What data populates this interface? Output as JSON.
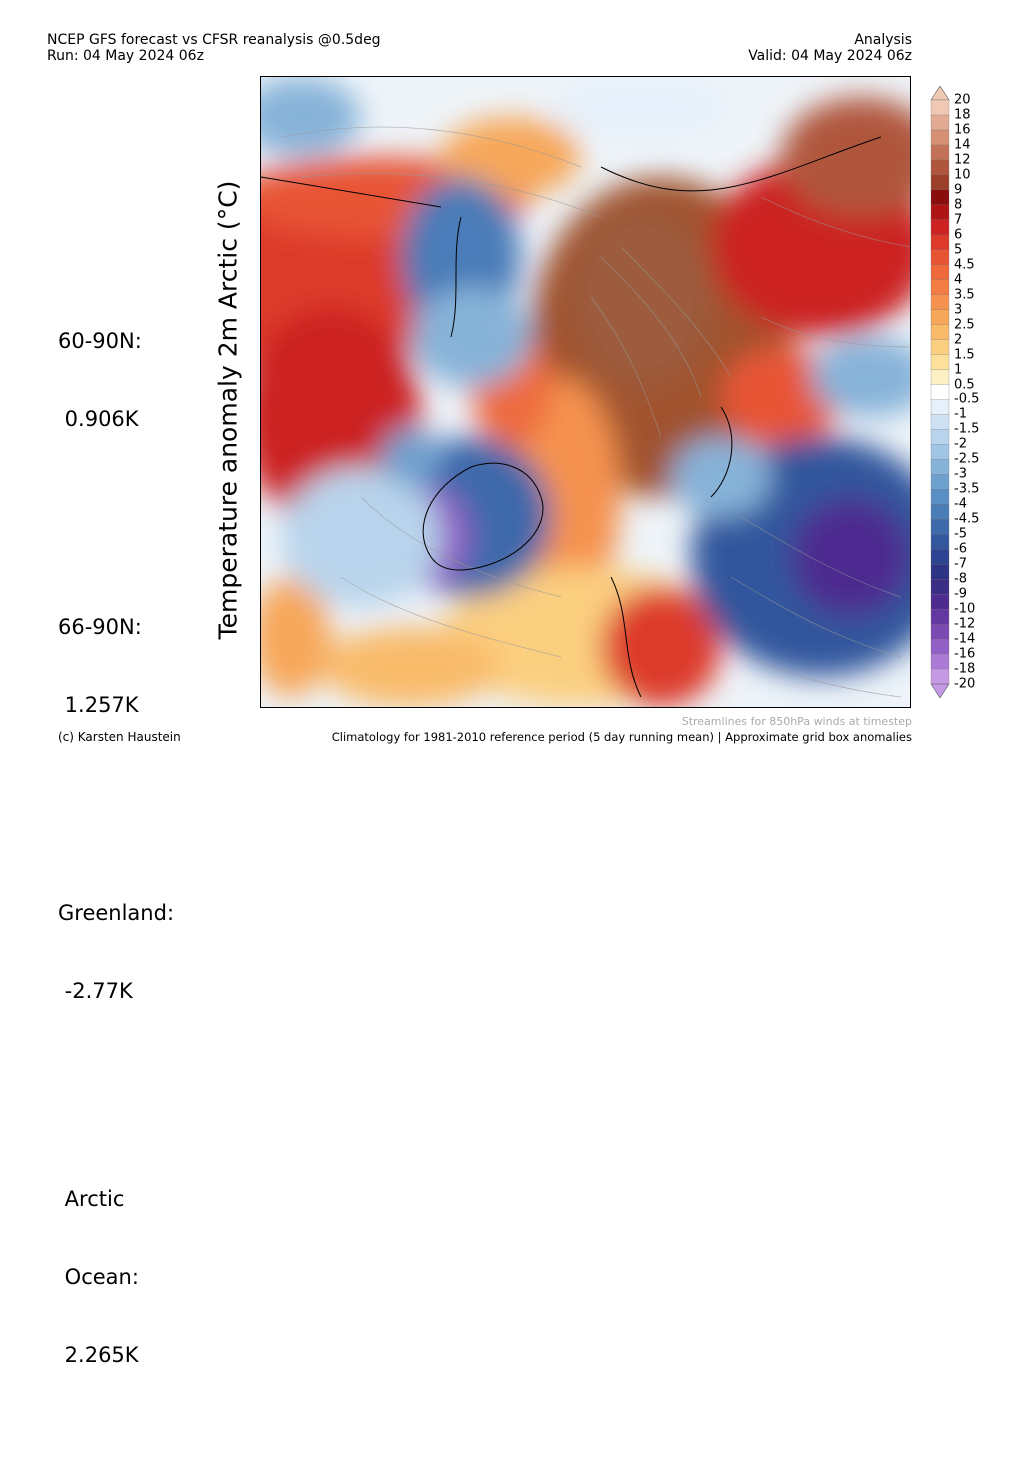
{
  "header": {
    "title_line1": "NCEP GFS forecast vs CFSR reanalysis @0.5deg",
    "title_line2": "Run: 04 May 2024 06z",
    "right_line1": "Analysis",
    "right_line2": "Valid: 04 May 2024 06z"
  },
  "stats": [
    {
      "label": "60-90N:",
      "value": " 0.906K"
    },
    {
      "label": "66-90N:",
      "value": " 1.257K"
    },
    {
      "label": "Greenland:",
      "value": " -2.77K"
    },
    {
      "label": " Arctic",
      "value": " Ocean:",
      "extra": " 2.265K"
    }
  ],
  "axis_label": "Temperature anomaly 2m Arctic (°C)",
  "colorbar": {
    "labels": [
      "20",
      "18",
      "16",
      "14",
      "12",
      "10",
      "9",
      "8",
      "7",
      "6",
      "5",
      "4.5",
      "4",
      "3.5",
      "3",
      "2.5",
      "2",
      "1.5",
      "1",
      "0.5",
      "-0.5",
      "-1",
      "-1.5",
      "-2",
      "-2.5",
      "-3",
      "-3.5",
      "-4",
      "-4.5",
      "-5",
      "-6",
      "-7",
      "-8",
      "-9",
      "-10",
      "-12",
      "-14",
      "-16",
      "-18",
      "-20"
    ],
    "colors": [
      "#f0c8b4",
      "#e3ab93",
      "#d58f74",
      "#c47257",
      "#b0563d",
      "#9c3f2a",
      "#8a0d0d",
      "#b01515",
      "#cc2222",
      "#dd3a2a",
      "#e85535",
      "#ee6a3c",
      "#f27d45",
      "#f5924f",
      "#f7a75a",
      "#f9bb6a",
      "#fbcf80",
      "#fce19b",
      "#fdf0c4",
      "#ffffff",
      "#e6f0fa",
      "#cfe2f3",
      "#b8d4ec",
      "#a0c4e3",
      "#87b3d9",
      "#6fa1cf",
      "#5a8fc4",
      "#4a7cb8",
      "#3e69ab",
      "#33569d",
      "#2b4390",
      "#2c3585",
      "#3a2d85",
      "#4d2c90",
      "#6338a0",
      "#7a4ab2",
      "#9260c4",
      "#aa7ad5",
      "#c39ae3"
    ]
  },
  "footer": {
    "credit": "(c) Karsten Haustein",
    "streamlines": "Streamlines for 850hPa winds at timestep",
    "climatology": "Climatology for 1981-2010 reference period (5 day running mean) | Approximate grid box anomalies"
  }
}
